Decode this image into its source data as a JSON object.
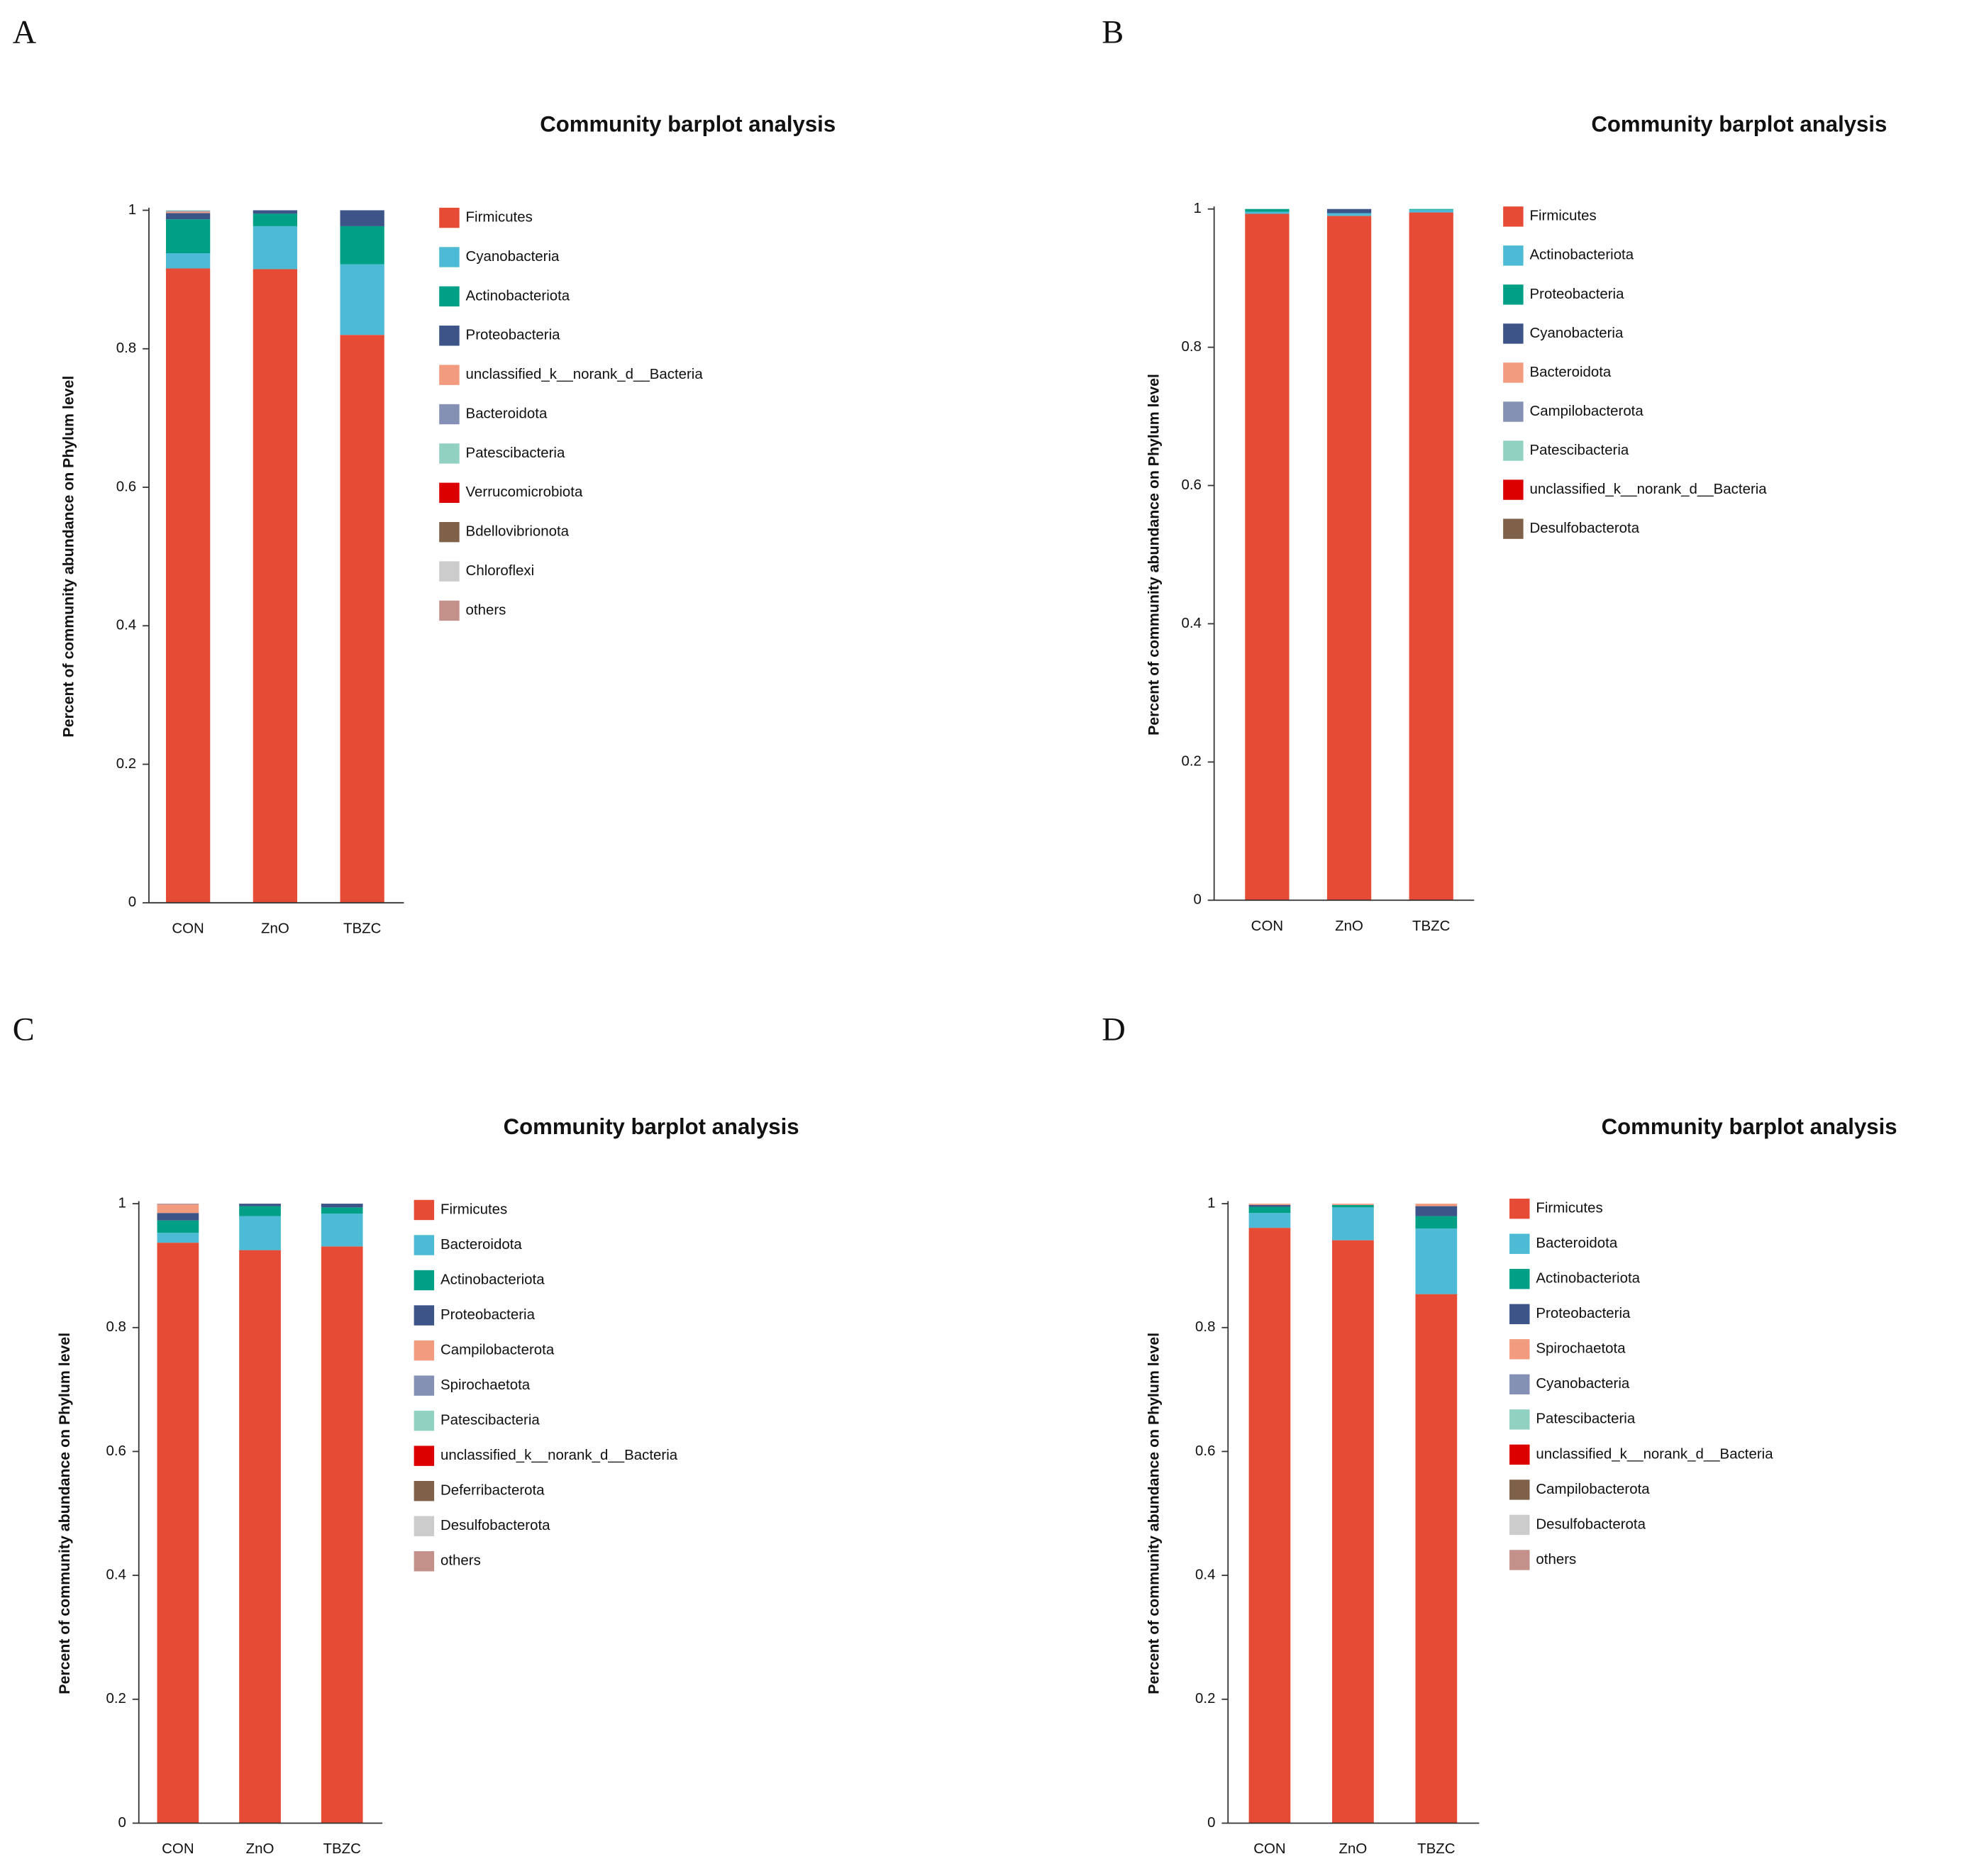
{
  "chart_data": [
    {
      "type": "stacked_bar",
      "panel_label": "A",
      "title": "Community barplot analysis",
      "ylabel": "Percent of community abundance on Phylum level",
      "categories": [
        "CON",
        "ZnO",
        "TBZC"
      ],
      "ylim": [
        0,
        1
      ],
      "yticks": [
        0,
        0.2,
        0.4,
        0.6,
        0.8,
        1
      ],
      "series": [
        {
          "name": "Firmicutes",
          "color": "#e64b35",
          "values": [
            0.916,
            0.915,
            0.82
          ]
        },
        {
          "name": "Cyanobacteria",
          "color": "#4dbbd5",
          "values": [
            0.022,
            0.062,
            0.102
          ]
        },
        {
          "name": "Actinobacteriota",
          "color": "#00a087",
          "values": [
            0.049,
            0.018,
            0.055
          ]
        },
        {
          "name": "Proteobacteria",
          "color": "#3c5488",
          "values": [
            0.009,
            0.005,
            0.023
          ]
        },
        {
          "name": "unclassified_k__norank_d__Bacteria",
          "color": "#f39b7f",
          "values": [
            0.002,
            0,
            0
          ]
        },
        {
          "name": "Bacteroidota",
          "color": "#8491b4",
          "values": [
            0.001,
            0,
            0
          ]
        },
        {
          "name": "Patescibacteria",
          "color": "#91d1c2",
          "values": [
            0.001,
            0,
            0
          ]
        },
        {
          "name": "Verrucomicrobiota",
          "color": "#dc0000",
          "values": [
            0,
            0,
            0
          ]
        },
        {
          "name": "Bdellovibrionota",
          "color": "#7e6148",
          "values": [
            0,
            0,
            0
          ]
        },
        {
          "name": "Chloroflexi",
          "color": "#cccccc",
          "values": [
            0,
            0,
            0
          ]
        },
        {
          "name": "others",
          "color": "#c4908a",
          "values": [
            0,
            0,
            0
          ]
        }
      ]
    },
    {
      "type": "stacked_bar",
      "panel_label": "B",
      "title": "Community barplot analysis",
      "ylabel": "Percent of community abundance on Phylum level",
      "categories": [
        "CON",
        "ZnO",
        "TBZC"
      ],
      "ylim": [
        0,
        1
      ],
      "yticks": [
        0,
        0.2,
        0.4,
        0.6,
        0.8,
        1
      ],
      "series": [
        {
          "name": "Firmicutes",
          "color": "#e64b35",
          "values": [
            0.993,
            0.99,
            0.995
          ]
        },
        {
          "name": "Actinobacteriota",
          "color": "#4dbbd5",
          "values": [
            0.003,
            0.004,
            0.004
          ]
        },
        {
          "name": "Proteobacteria",
          "color": "#00a087",
          "values": [
            0.004,
            0,
            0.001
          ]
        },
        {
          "name": "Cyanobacteria",
          "color": "#3c5488",
          "values": [
            0,
            0.006,
            0
          ]
        },
        {
          "name": "Bacteroidota",
          "color": "#f39b7f",
          "values": [
            0,
            0,
            0
          ]
        },
        {
          "name": "Campilobacterota",
          "color": "#8491b4",
          "values": [
            0,
            0,
            0
          ]
        },
        {
          "name": "Patescibacteria",
          "color": "#91d1c2",
          "values": [
            0,
            0,
            0
          ]
        },
        {
          "name": "unclassified_k__norank_d__Bacteria",
          "color": "#dc0000",
          "values": [
            0,
            0,
            0
          ]
        },
        {
          "name": "Desulfobacterota",
          "color": "#7e6148",
          "values": [
            0,
            0,
            0
          ]
        }
      ]
    },
    {
      "type": "stacked_bar",
      "panel_label": "C",
      "title": "Community barplot analysis",
      "ylabel": "Percent of community abundance on Phylum level",
      "categories": [
        "CON",
        "ZnO",
        "TBZC"
      ],
      "ylim": [
        0,
        1
      ],
      "yticks": [
        0,
        0.2,
        0.4,
        0.6,
        0.8,
        1
      ],
      "series": [
        {
          "name": "Firmicutes",
          "color": "#e64b35",
          "values": [
            0.937,
            0.925,
            0.931
          ]
        },
        {
          "name": "Bacteroidota",
          "color": "#4dbbd5",
          "values": [
            0.016,
            0.055,
            0.053
          ]
        },
        {
          "name": "Actinobacteriota",
          "color": "#00a087",
          "values": [
            0.02,
            0.016,
            0.01
          ]
        },
        {
          "name": "Proteobacteria",
          "color": "#3c5488",
          "values": [
            0.012,
            0.004,
            0.006
          ]
        },
        {
          "name": "Campilobacterota",
          "color": "#f39b7f",
          "values": [
            0.013,
            0,
            0
          ]
        },
        {
          "name": "Spirochaetota",
          "color": "#8491b4",
          "values": [
            0,
            0,
            0
          ]
        },
        {
          "name": "Patescibacteria",
          "color": "#91d1c2",
          "values": [
            0,
            0,
            0
          ]
        },
        {
          "name": "unclassified_k__norank_d__Bacteria",
          "color": "#dc0000",
          "values": [
            0,
            0,
            0
          ]
        },
        {
          "name": "Deferribacterota",
          "color": "#7e6148",
          "values": [
            0,
            0,
            0
          ]
        },
        {
          "name": "Desulfobacterota",
          "color": "#cccccc",
          "values": [
            0,
            0,
            0
          ]
        },
        {
          "name": "others",
          "color": "#c4908a",
          "values": [
            0.002,
            0,
            0
          ]
        }
      ]
    },
    {
      "type": "stacked_bar",
      "panel_label": "D",
      "title": "Community barplot analysis",
      "ylabel": "Percent of community abundance on Phylum level",
      "categories": [
        "CON",
        "ZnO",
        "TBZC"
      ],
      "ylim": [
        0,
        1
      ],
      "yticks": [
        0,
        0.2,
        0.4,
        0.6,
        0.8,
        1
      ],
      "series": [
        {
          "name": "Firmicutes",
          "color": "#e64b35",
          "values": [
            0.961,
            0.941,
            0.854
          ]
        },
        {
          "name": "Bacteroidota",
          "color": "#4dbbd5",
          "values": [
            0.024,
            0.053,
            0.106
          ]
        },
        {
          "name": "Actinobacteriota",
          "color": "#00a087",
          "values": [
            0.01,
            0.004,
            0.02
          ]
        },
        {
          "name": "Proteobacteria",
          "color": "#3c5488",
          "values": [
            0.003,
            0,
            0.016
          ]
        },
        {
          "name": "Spirochaetota",
          "color": "#f39b7f",
          "values": [
            0.002,
            0.002,
            0.004
          ]
        },
        {
          "name": "Cyanobacteria",
          "color": "#8491b4",
          "values": [
            0,
            0,
            0
          ]
        },
        {
          "name": "Patescibacteria",
          "color": "#91d1c2",
          "values": [
            0,
            0,
            0
          ]
        },
        {
          "name": "unclassified_k__norank_d__Bacteria",
          "color": "#dc0000",
          "values": [
            0,
            0,
            0
          ]
        },
        {
          "name": "Campilobacterota",
          "color": "#7e6148",
          "values": [
            0,
            0,
            0
          ]
        },
        {
          "name": "Desulfobacterota",
          "color": "#cccccc",
          "values": [
            0,
            0,
            0
          ]
        },
        {
          "name": "others",
          "color": "#c4908a",
          "values": [
            0,
            0,
            0
          ]
        }
      ]
    }
  ]
}
